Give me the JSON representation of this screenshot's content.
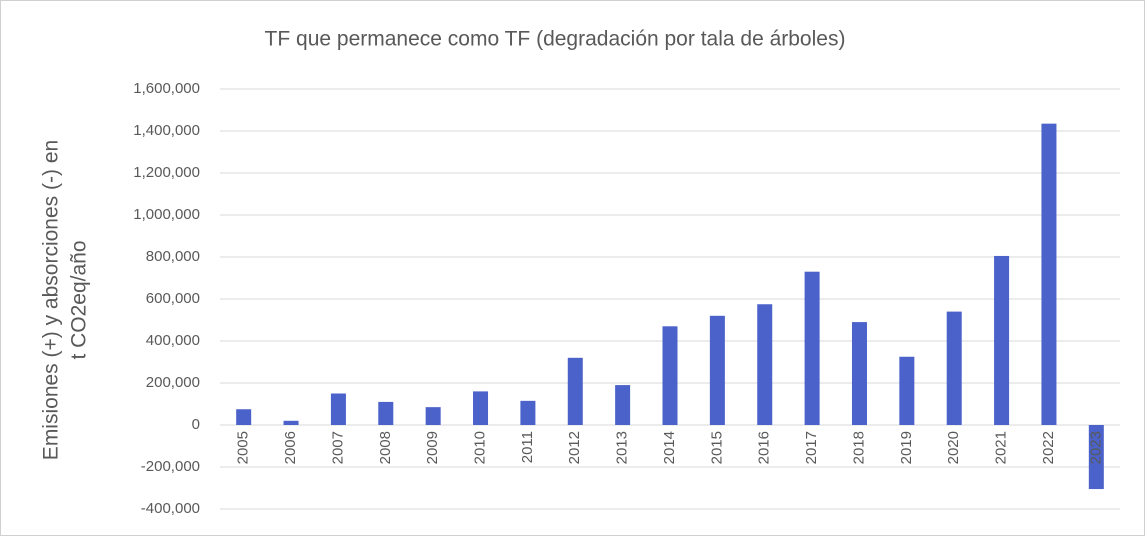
{
  "chart_data": {
    "type": "bar",
    "title": "TF que permanece como TF (degradación por tala de árboles)",
    "ylabel": [
      "Emisiones (+) y absorciones (-) en",
      "t CO2eq/año"
    ],
    "categories": [
      "2005",
      "2006",
      "2007",
      "2008",
      "2009",
      "2010",
      "2011",
      "2012",
      "2013",
      "2014",
      "2015",
      "2016",
      "2017",
      "2018",
      "2019",
      "2020",
      "2021",
      "2022",
      "2023"
    ],
    "values": [
      75000,
      20000,
      150000,
      110000,
      85000,
      160000,
      115000,
      320000,
      190000,
      470000,
      520000,
      575000,
      730000,
      490000,
      325000,
      540000,
      805000,
      1435000,
      -305000
    ],
    "color": "#4a62c9",
    "ylim": [
      -400000,
      1600000
    ],
    "yticks": [
      {
        "value": -400000,
        "label": "-400,000"
      },
      {
        "value": -200000,
        "label": "-200,000"
      },
      0,
      {
        "value": 200000,
        "label": "200,000"
      },
      {
        "value": 400000,
        "label": "400,000"
      },
      {
        "value": 600000,
        "label": "600,000"
      },
      {
        "value": 800000,
        "label": "800,000"
      },
      {
        "value": 1000000,
        "label": "1,000,000"
      },
      {
        "value": 1200000,
        "label": "1,200,000"
      },
      {
        "value": 1400000,
        "label": "1,400,000"
      },
      {
        "value": 1600000,
        "label": "1,600,000"
      }
    ],
    "grid": true
  }
}
